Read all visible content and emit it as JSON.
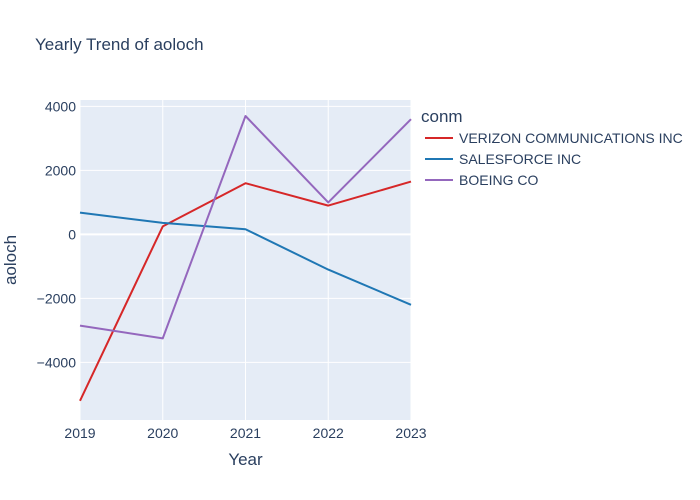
{
  "chart_data": {
    "type": "line",
    "title": "Yearly Trend of aoloch",
    "xlabel": "Year",
    "ylabel": "aoloch",
    "x": [
      2019,
      2020,
      2021,
      2022,
      2023
    ],
    "x_ticks": [
      "2019",
      "2020",
      "2021",
      "2022",
      "2023"
    ],
    "y_ticks": [
      -4000,
      -2000,
      0,
      2000,
      4000
    ],
    "y_tick_labels": [
      "−4000",
      "−2000",
      "0",
      "2000",
      "4000"
    ],
    "xlim": [
      2019,
      2023
    ],
    "ylim": [
      -5800,
      4200
    ],
    "grid": true,
    "legend_title": "conm",
    "legend_position": "right",
    "series": [
      {
        "name": "VERIZON COMMUNICATIONS INC",
        "color": "#d62728",
        "values": [
          -5200,
          250,
          1600,
          900,
          1650
        ]
      },
      {
        "name": "SALESFORCE INC",
        "color": "#1f77b4",
        "values": [
          680,
          360,
          160,
          -1100,
          -2200
        ]
      },
      {
        "name": "BOEING CO",
        "color": "#9467bd",
        "values": [
          -2850,
          -3250,
          3700,
          1000,
          3600
        ]
      }
    ]
  }
}
